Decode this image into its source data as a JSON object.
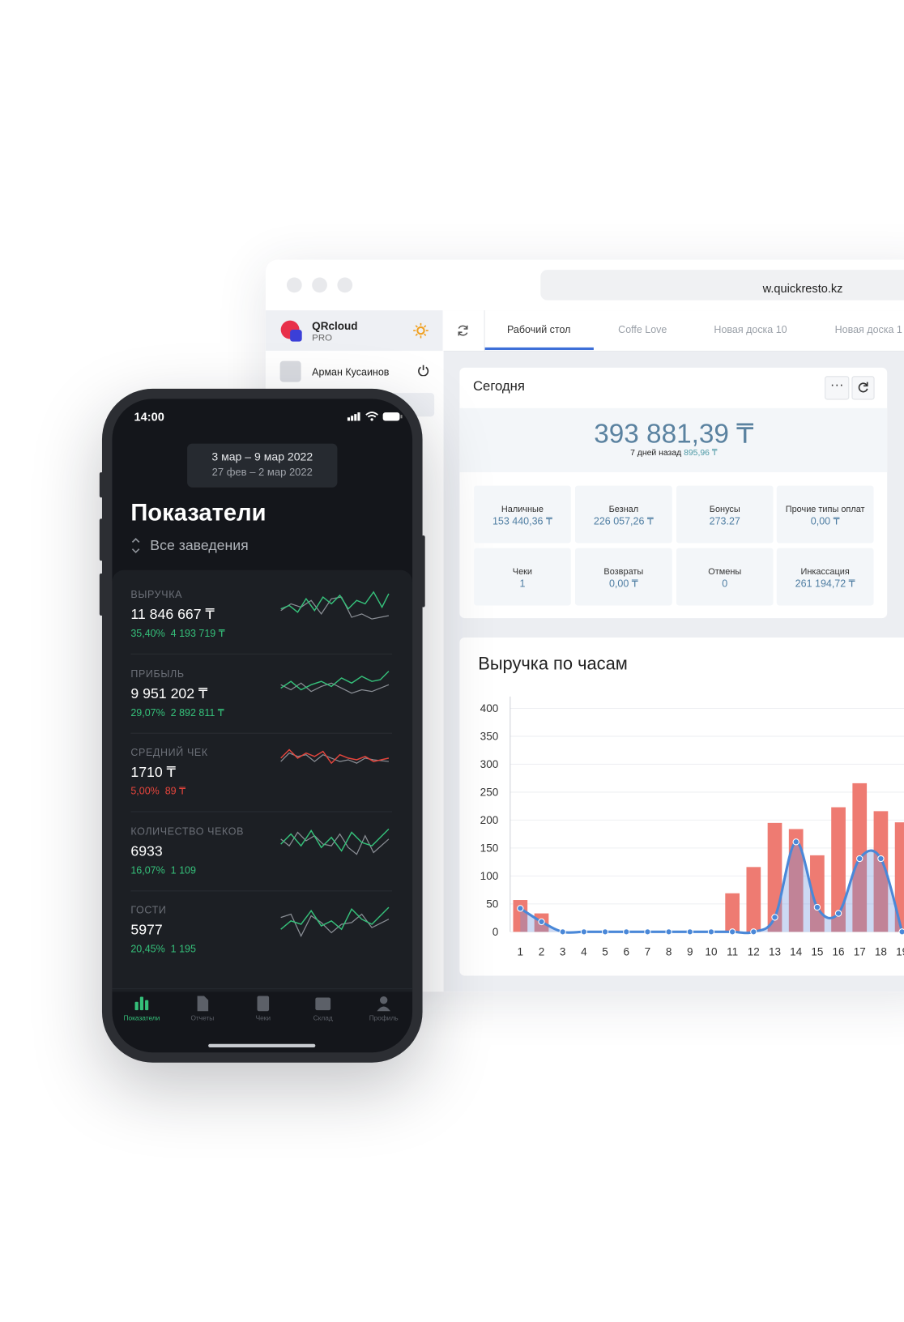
{
  "browser": {
    "url": "w.quickresto.kz"
  },
  "sidebar": {
    "brand": "QRcloud",
    "plan": "PRO",
    "user": "Арман Кусаинов"
  },
  "tabs": [
    "Рабочий стол",
    "Coffe Love",
    "Новая доска 10",
    "Новая доска 1"
  ],
  "today": {
    "title": "Сегодня",
    "total": "393 881,39 ₸",
    "compare_label": "7 дней назад",
    "compare_value": "895,96 ₸",
    "cells": [
      {
        "label": "Наличные",
        "value": "153 440,36 ₸"
      },
      {
        "label": "Безнал",
        "value": "226 057,26 ₸"
      },
      {
        "label": "Бонусы",
        "value": "273.27"
      },
      {
        "label": "Прочие типы оплат",
        "value": "0,00 ₸"
      },
      {
        "label": "Чеки",
        "value": "1"
      },
      {
        "label": "Возвраты",
        "value": "0,00 ₸"
      },
      {
        "label": "Отмены",
        "value": "0"
      },
      {
        "label": "Инкассация",
        "value": "261 194,72 ₸"
      }
    ]
  },
  "chart_data": {
    "type": "bar",
    "title": "Выручка по часам",
    "categories": [
      "1",
      "2",
      "3",
      "4",
      "5",
      "6",
      "7",
      "8",
      "9",
      "10",
      "11",
      "12",
      "13",
      "14",
      "15",
      "16",
      "17",
      "18",
      "19"
    ],
    "series": [
      {
        "type": "bar",
        "color": "#ee7b72",
        "values": [
          57,
          33,
          0,
          0,
          0,
          0,
          0,
          0,
          0,
          0,
          69,
          116,
          195,
          184,
          137,
          223,
          266,
          216,
          196
        ]
      },
      {
        "type": "line",
        "color": "#4a88d8",
        "values": [
          42,
          18,
          0,
          0,
          0,
          0,
          0,
          0,
          0,
          0,
          0,
          0,
          26,
          161,
          44,
          33,
          131,
          131,
          0
        ]
      }
    ],
    "ylim": [
      0,
      400
    ],
    "yticks": [
      0,
      50,
      100,
      150,
      200,
      250,
      300,
      350,
      400
    ],
    "grid": true
  },
  "phone": {
    "time": "14:00",
    "period": "3 мар – 9 мар 2022",
    "compare_period": "27 фев – 2 мар 2022",
    "title": "Показатели",
    "venue": "Все заведения",
    "metrics": [
      {
        "label": "ВЫРУЧКА",
        "value": "11 846 667 ₸",
        "change": "35,40%",
        "delta": "4 193 719 ₸",
        "color": "#35c07a"
      },
      {
        "label": "ПРИБЫЛЬ",
        "value": "9 951 202  ₸",
        "change": "29,07%",
        "delta": "2 892 811 ₸",
        "color": "#35c07a"
      },
      {
        "label": "СРЕДНИЙ ЧЕК",
        "value": "1710 ₸",
        "change": "5,00%",
        "delta": "89 ₸",
        "color": "#e5453c"
      },
      {
        "label": "КОЛИЧЕСТВО ЧЕКОВ",
        "value": "6933",
        "change": "16,07%",
        "delta": "1 109",
        "color": "#35c07a"
      },
      {
        "label": "ГОСТИ",
        "value": "5977",
        "change": "20,45%",
        "delta": "1 195",
        "color": "#35c07a"
      }
    ],
    "nav": [
      "Показатели",
      "Отчеты",
      "Чеки",
      "Склад",
      "Профиль"
    ]
  }
}
